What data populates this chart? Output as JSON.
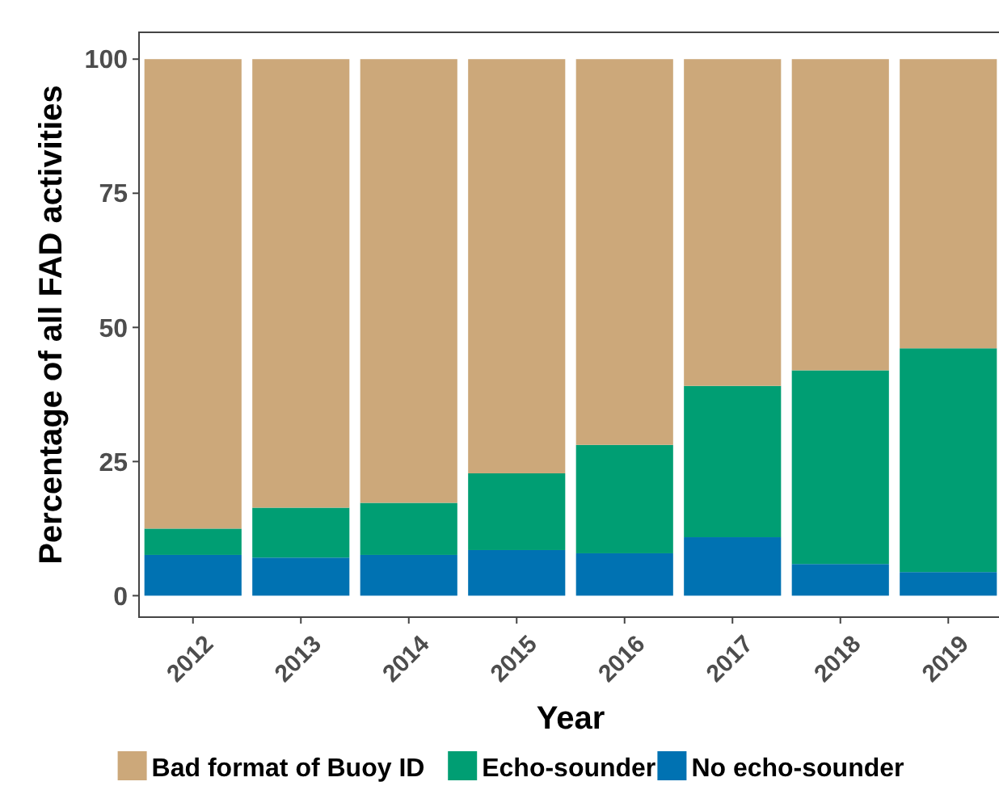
{
  "chart_data": {
    "type": "bar",
    "stacked": true,
    "xlabel": "Year",
    "ylabel": "Percentage of all FAD activities",
    "categories": [
      "2012",
      "2013",
      "2014",
      "2015",
      "2016",
      "2017",
      "2018",
      "2019"
    ],
    "series": [
      {
        "name": "No echo-sounder",
        "color": "#0072b2",
        "values": [
          7.6,
          7.1,
          7.6,
          8.5,
          7.9,
          10.9,
          5.9,
          4.4
        ]
      },
      {
        "name": "Echo-sounder",
        "color": "#009e73",
        "values": [
          4.9,
          9.3,
          9.7,
          14.3,
          20.2,
          28.2,
          36.1,
          41.7
        ]
      },
      {
        "name": "Bad format of Buoy ID",
        "color": "#cca87a",
        "values": [
          87.5,
          83.6,
          82.7,
          77.2,
          71.9,
          60.9,
          58,
          53.9
        ]
      }
    ],
    "ylim": [
      -4,
      105
    ],
    "yticks": [
      0,
      25,
      50,
      75,
      100
    ],
    "grid": false,
    "legend": "bottom"
  }
}
